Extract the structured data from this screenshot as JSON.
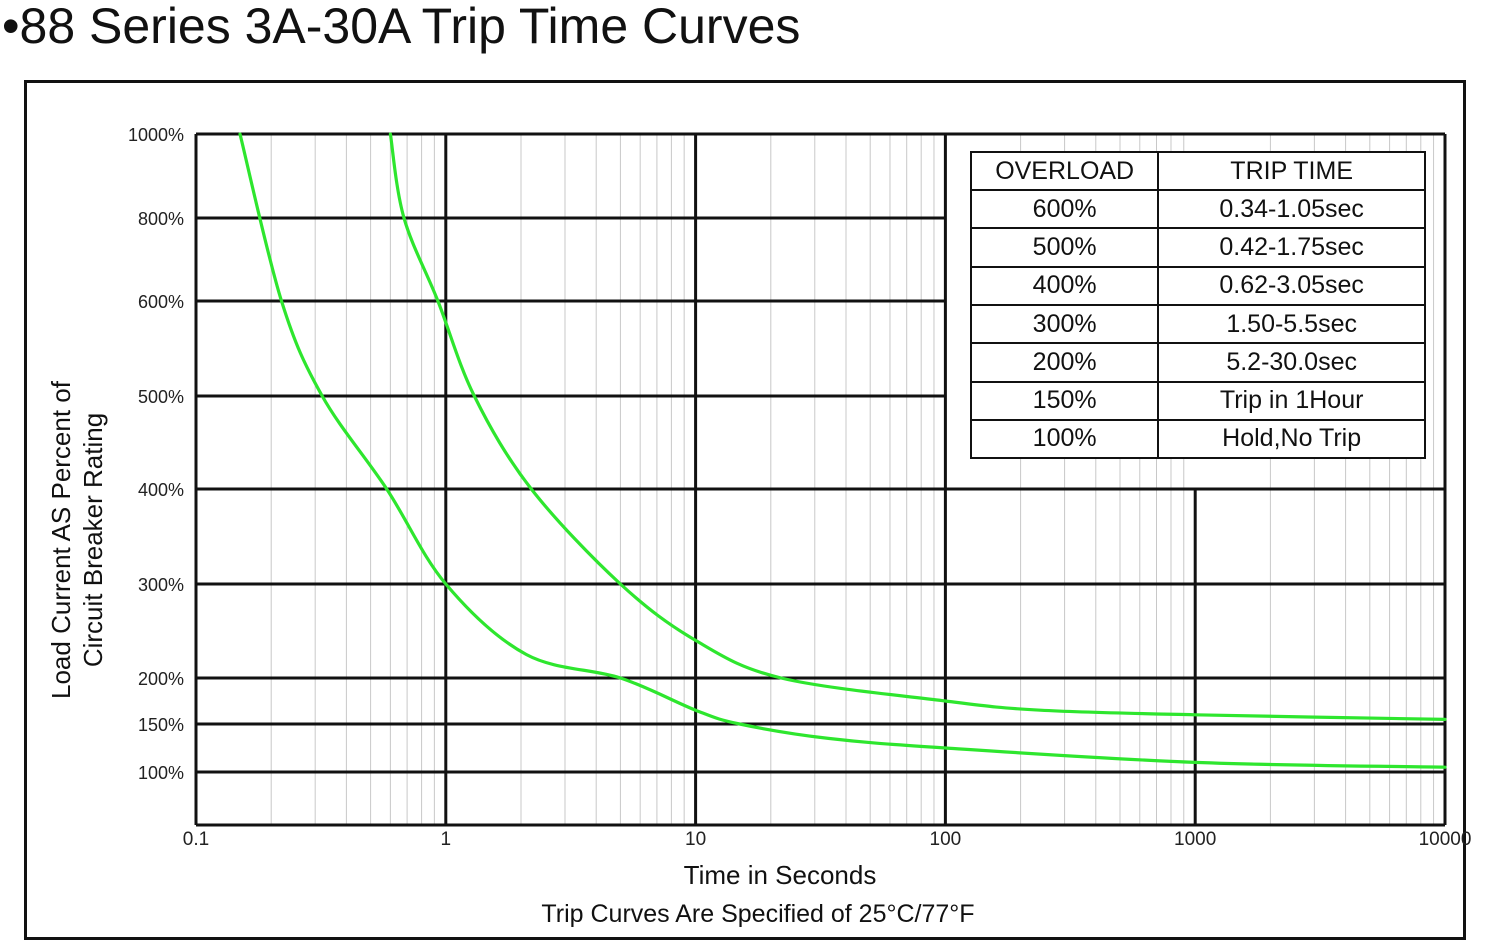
{
  "title": "•88 Series 3A-30A Trip Time Curves",
  "chart_data": {
    "type": "line",
    "xscale": "log",
    "xlim": [
      0.1,
      10000
    ],
    "x_ticks": [
      "0.1",
      "1",
      "10",
      "100",
      "1000",
      "10000"
    ],
    "y_ticks": [
      "1000%",
      "800%",
      "600%",
      "500%",
      "400%",
      "300%",
      "200%",
      "150%",
      "100%"
    ],
    "xlabel": "Time in Seconds",
    "ylabel_line1": "Load Current AS Percent of",
    "ylabel_line2": "Circuit Breaker Rating",
    "note": "Trip Curves Are Specified of 25°C/77°F",
    "series": [
      {
        "color": "#2ee62e",
        "points": [
          [
            0.15,
            1000
          ],
          [
            0.22,
            600
          ],
          [
            0.32,
            500
          ],
          [
            0.58,
            400
          ],
          [
            1,
            300
          ],
          [
            2.1,
            225
          ],
          [
            5,
            200
          ],
          [
            10,
            165
          ],
          [
            15,
            150
          ],
          [
            34,
            135
          ],
          [
            100,
            125
          ],
          [
            1000,
            110
          ],
          [
            10000,
            105
          ]
        ]
      },
      {
        "color": "#2ee62e",
        "points": [
          [
            0.6,
            1000
          ],
          [
            0.68,
            800
          ],
          [
            0.93,
            600
          ],
          [
            1.3,
            500
          ],
          [
            2.2,
            400
          ],
          [
            5,
            300
          ],
          [
            10,
            240
          ],
          [
            22,
            200
          ],
          [
            100,
            175
          ],
          [
            240,
            165
          ],
          [
            1000,
            160
          ],
          [
            10000,
            155
          ]
        ]
      }
    ],
    "grid": true
  },
  "overload_table": {
    "headers": [
      "OVERLOAD",
      "TRIP TIME"
    ],
    "rows": [
      [
        "600%",
        "0.34-1.05sec"
      ],
      [
        "500%",
        "0.42-1.75sec"
      ],
      [
        "400%",
        "0.62-3.05sec"
      ],
      [
        "300%",
        "1.50-5.5sec"
      ],
      [
        "200%",
        "5.2-30.0sec"
      ],
      [
        "150%",
        "Trip in 1Hour"
      ],
      [
        "100%",
        "Hold,No Trip"
      ]
    ]
  }
}
